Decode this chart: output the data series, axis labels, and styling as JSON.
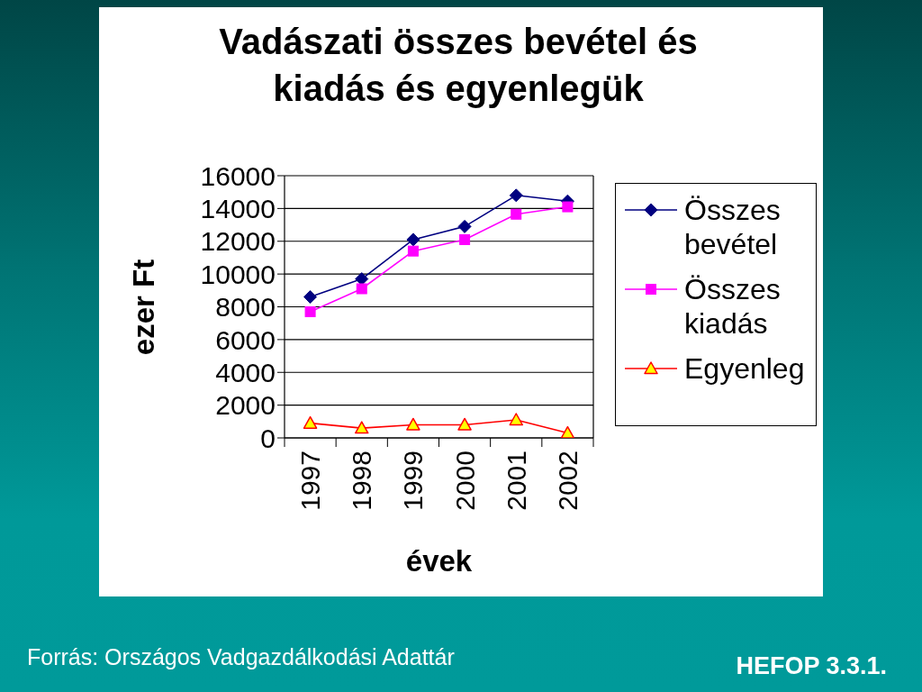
{
  "chart_data": {
    "type": "line",
    "title": "Vadászati összes bevétel és kiadás és egyenlegük",
    "xlabel": "évek",
    "ylabel": "ezer Ft",
    "categories": [
      "1997",
      "1998",
      "1999",
      "2000",
      "2001",
      "2002"
    ],
    "series": [
      {
        "name": "Összes bevétel",
        "color": "#000080",
        "marker": "diamond",
        "values": [
          8600,
          9700,
          12100,
          12900,
          14800,
          14450
        ]
      },
      {
        "name": "Összes kiadás",
        "color": "#ff00ff",
        "marker": "square",
        "values": [
          7700,
          9100,
          11400,
          12100,
          13650,
          14100
        ]
      },
      {
        "name": "Egyenleg",
        "color": "#ff0000",
        "colors": [
          "#ffff00",
          "#ffff00",
          "#ffff00",
          "#ffff00",
          "#ffff00",
          "#ffff00"
        ],
        "marker": "triangle",
        "values": [
          900,
          600,
          800,
          800,
          1100,
          300
        ]
      }
    ],
    "ylim": [
      0,
      16000
    ],
    "yticks": [
      0,
      2000,
      4000,
      6000,
      8000,
      10000,
      12000,
      14000,
      16000
    ],
    "grid": "y",
    "legend": "right",
    "annotations": [
      "Forrás: Országos Vadgazdálkodási Adattár",
      "HEFOP 3.3.1."
    ]
  }
}
